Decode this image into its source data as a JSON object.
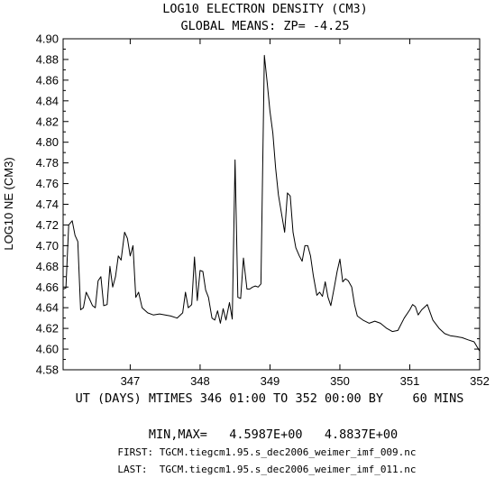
{
  "chart_data": {
    "type": "line",
    "title": "LOG10 ELECTRON DENSITY (CM3)",
    "subtitle": "GLOBAL MEANS: ZP= -4.25",
    "xlabel": "UT (DAYS) MTIMES 346 01:00 TO 352 00:00 BY    60 MINS",
    "ylabel": "LOG10 NE (CM3)",
    "xlim": [
      346.04,
      352.0
    ],
    "ylim": [
      4.58,
      4.9
    ],
    "x_ticks": [
      "347",
      "348",
      "349",
      "350",
      "351",
      "352"
    ],
    "y_ticks": [
      "4.58",
      "4.60",
      "4.62",
      "4.64",
      "4.66",
      "4.68",
      "4.70",
      "4.72",
      "4.74",
      "4.76",
      "4.78",
      "4.80",
      "4.82",
      "4.84",
      "4.86",
      "4.88",
      "4.90"
    ],
    "grid": false,
    "series": [
      {
        "x": [
          346.04,
          346.08,
          346.12,
          346.17,
          346.21,
          346.25,
          346.29,
          346.33,
          346.37,
          346.42,
          346.46,
          346.5,
          346.54,
          346.58,
          346.62,
          346.67,
          346.71,
          346.75,
          346.79,
          346.83,
          346.87,
          346.92,
          346.96,
          347.0,
          347.04,
          347.08,
          347.12,
          347.17,
          347.25,
          347.33,
          347.42,
          347.5,
          347.58,
          347.67,
          347.75,
          347.79,
          347.83,
          347.88,
          347.92,
          347.96,
          348.0,
          348.04,
          348.08,
          348.12,
          348.17,
          348.21,
          348.25,
          348.29,
          348.33,
          348.37,
          348.42,
          348.46,
          348.5,
          348.54,
          348.58,
          348.62,
          348.67,
          348.71,
          348.75,
          348.79,
          348.83,
          348.87,
          348.92,
          348.96,
          349.0,
          349.04,
          349.08,
          349.12,
          349.17,
          349.21,
          349.25,
          349.29,
          349.33,
          349.37,
          349.42,
          349.46,
          349.5,
          349.54,
          349.58,
          349.62,
          349.67,
          349.71,
          349.75,
          349.79,
          349.83,
          349.87,
          349.92,
          349.96,
          350.0,
          350.04,
          350.08,
          350.12,
          350.17,
          350.21,
          350.25,
          350.33,
          350.42,
          350.5,
          350.58,
          350.67,
          350.75,
          350.83,
          350.92,
          351.0,
          351.04,
          351.08,
          351.12,
          351.17,
          351.25,
          351.33,
          351.42,
          351.5,
          351.58,
          351.67,
          351.75,
          351.83,
          351.92,
          352.0
        ],
        "y": [
          4.658,
          4.659,
          4.72,
          4.724,
          4.71,
          4.704,
          4.638,
          4.64,
          4.655,
          4.648,
          4.642,
          4.64,
          4.666,
          4.67,
          4.642,
          4.643,
          4.68,
          4.66,
          4.67,
          4.69,
          4.686,
          4.713,
          4.707,
          4.69,
          4.7,
          4.65,
          4.655,
          4.64,
          4.635,
          4.633,
          4.634,
          4.633,
          4.632,
          4.63,
          4.635,
          4.655,
          4.64,
          4.643,
          4.689,
          4.647,
          4.676,
          4.675,
          4.657,
          4.65,
          4.63,
          4.628,
          4.637,
          4.625,
          4.639,
          4.628,
          4.645,
          4.629,
          4.783,
          4.65,
          4.649,
          4.688,
          4.658,
          4.658,
          4.66,
          4.661,
          4.66,
          4.663,
          4.884,
          4.858,
          4.83,
          4.809,
          4.775,
          4.749,
          4.729,
          4.713,
          4.751,
          4.748,
          4.713,
          4.698,
          4.69,
          4.685,
          4.7,
          4.7,
          4.69,
          4.671,
          4.652,
          4.655,
          4.651,
          4.665,
          4.65,
          4.642,
          4.66,
          4.675,
          4.687,
          4.665,
          4.668,
          4.666,
          4.66,
          4.643,
          4.632,
          4.628,
          4.625,
          4.627,
          4.625,
          4.62,
          4.617,
          4.618,
          4.63,
          4.638,
          4.643,
          4.641,
          4.633,
          4.638,
          4.643,
          4.628,
          4.62,
          4.615,
          4.613,
          4.612,
          4.611,
          4.609,
          4.607,
          4.598
        ]
      }
    ]
  },
  "footer": {
    "minmax": "MIN,MAX=   4.5987E+00   4.8837E+00",
    "first": "FIRST: TGCM.tiegcm1.95.s_dec2006_weimer_imf_009.nc",
    "last": "LAST:  TGCM.tiegcm1.95.s_dec2006_weimer_imf_011.nc"
  }
}
